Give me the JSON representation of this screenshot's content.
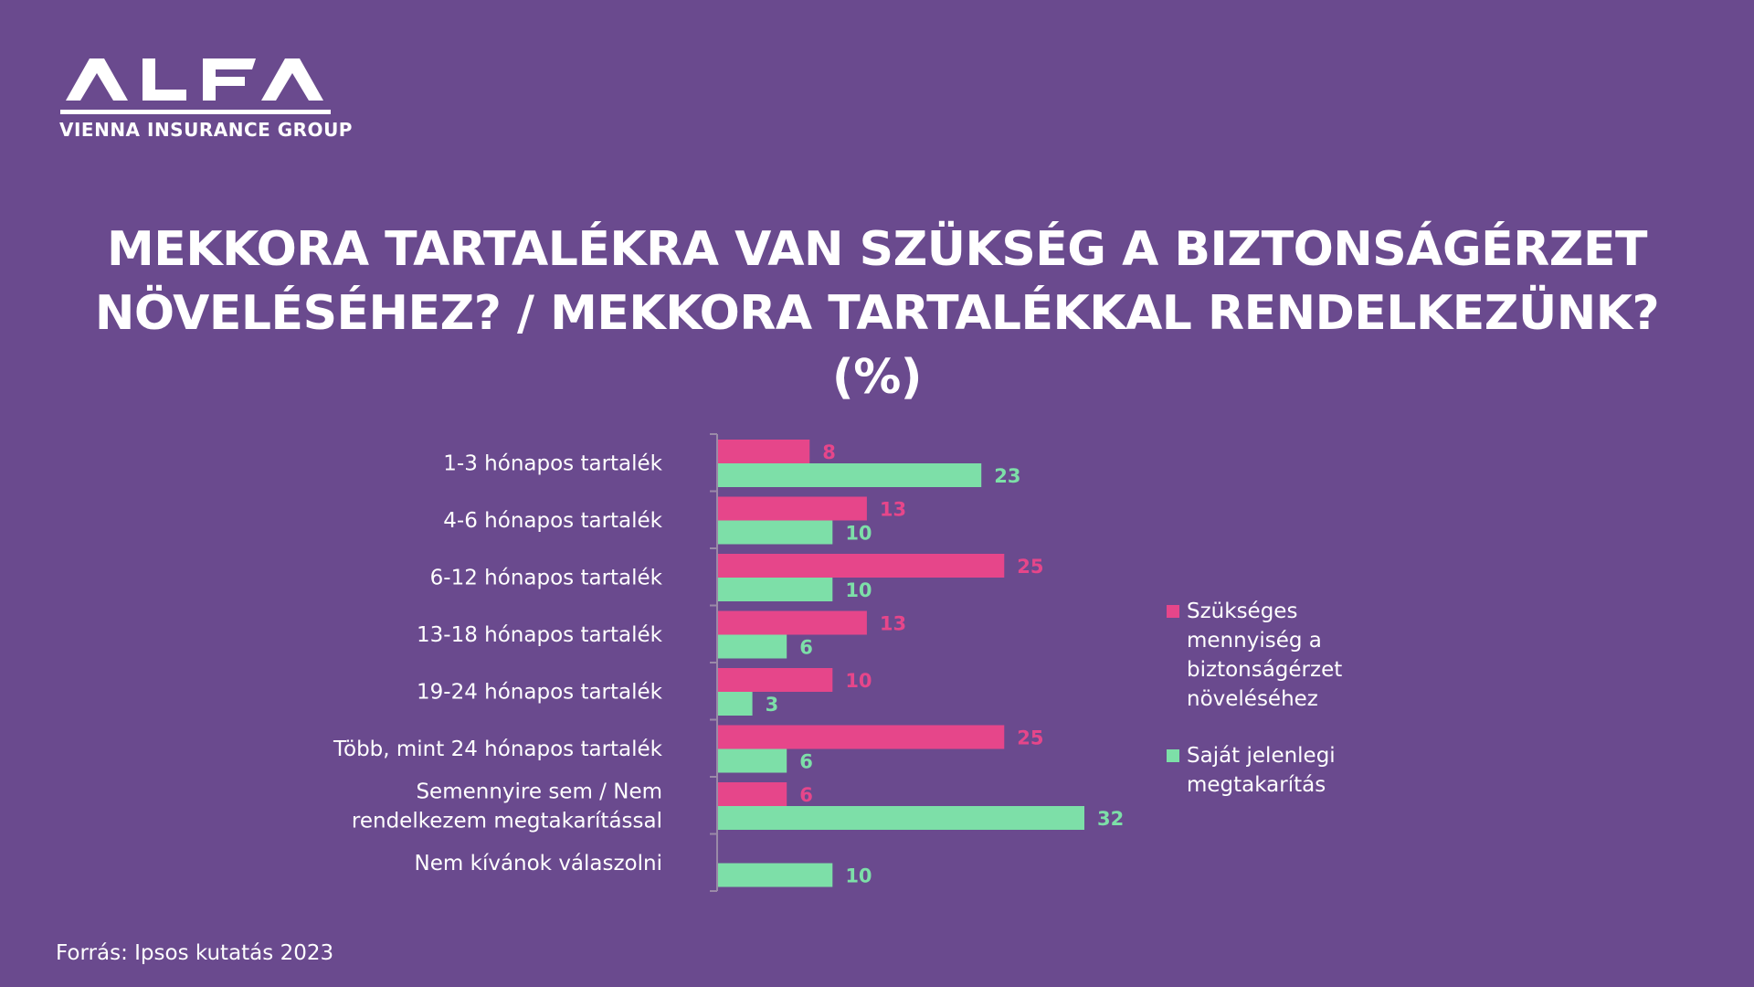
{
  "logo": {
    "brand": "ALFA",
    "subtitle": "VIENNA INSURANCE GROUP"
  },
  "title": {
    "line1": "MEKKORA TARTALÉKRA VAN SZÜKSÉG A BIZTONSÁGÉRZET",
    "line2": "NÖVELÉSÉHEZ? / MEKKORA TARTALÉKKAL RENDELKEZÜNK?",
    "line3": "(%)"
  },
  "colors": {
    "background": "#6a4a8e",
    "needed": "#e6468a",
    "own": "#7ddfa8"
  },
  "chart_data": {
    "type": "bar",
    "orientation": "horizontal",
    "categories": [
      "1-3 hónapos tartalék",
      "4-6 hónapos tartalék",
      "6-12 hónapos tartalék",
      "13-18 hónapos tartalék",
      "19-24 hónapos tartalék",
      "Több, mint 24 hónapos tartalék",
      "Semennyire sem / Nem rendelkezem megtakarítással",
      "Nem kívánok válaszolni"
    ],
    "series": [
      {
        "name": "Szükséges mennyiség a biztonságérzet növeléséhez",
        "values": [
          8,
          13,
          25,
          13,
          10,
          25,
          6,
          null
        ]
      },
      {
        "name": "Saját jelenlegi megtakarítás",
        "values": [
          23,
          10,
          10,
          6,
          3,
          6,
          32,
          10
        ]
      }
    ],
    "xlim": [
      0,
      35
    ],
    "grid": false,
    "legend": "right"
  },
  "legend": {
    "needed": "Szükséges mennyiség a biztonságérzet növeléséhez",
    "own": "Saját jelenlegi megtakarítás"
  },
  "source": "Forrás: Ipsos kutatás 2023"
}
